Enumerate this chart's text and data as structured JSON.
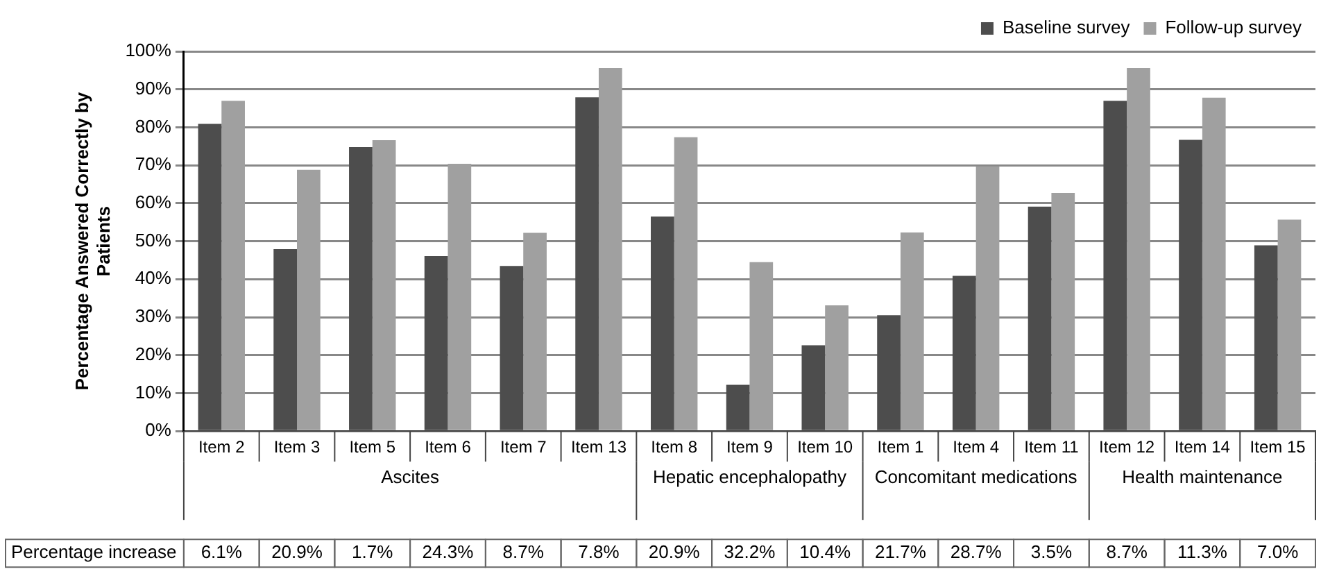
{
  "chart_data": {
    "type": "bar",
    "ylabel": "Percentage Answered Correctly by Patients",
    "categories": [
      "Item 2",
      "Item 3",
      "Item 5",
      "Item 6",
      "Item 7",
      "Item 13",
      "Item 8",
      "Item 9",
      "Item 10",
      "Item 1",
      "Item 4",
      "Item 11",
      "Item 12",
      "Item 14",
      "Item 15"
    ],
    "series": [
      {
        "name": "Baseline survey",
        "color": "#4d4d4d",
        "values": [
          80.9,
          47.9,
          74.8,
          46.1,
          43.5,
          87.9,
          56.5,
          12.2,
          22.6,
          30.5,
          40.9,
          59.1,
          87,
          76.7,
          48.9
        ]
      },
      {
        "name": "Follow-up survey",
        "color": "#a0a0a0",
        "values": [
          87,
          68.8,
          76.6,
          70.4,
          52.2,
          95.6,
          77.4,
          44.5,
          33.1,
          52.3,
          69.7,
          62.7,
          95.6,
          87.8,
          55.7
        ]
      }
    ],
    "ylim": [
      0,
      100
    ],
    "yticks": [
      {
        "value": 0,
        "label": "0%"
      },
      {
        "value": 10,
        "label": "10%"
      },
      {
        "value": 20,
        "label": "20%"
      },
      {
        "value": 30,
        "label": "30%"
      },
      {
        "value": 40,
        "label": "40%"
      },
      {
        "value": 50,
        "label": "50%"
      },
      {
        "value": 60,
        "label": "60%"
      },
      {
        "value": 70,
        "label": "70%"
      },
      {
        "value": 80,
        "label": "80%"
      },
      {
        "value": 90,
        "label": "90%"
      },
      {
        "value": 100,
        "label": "100%"
      }
    ],
    "grid": "y",
    "legend": "top right",
    "annotations": [
      "Ascites",
      "Hepatic encephalopathy",
      "Concomitant medications",
      "Health maintenance",
      "Percentage increase",
      "6.1%",
      "20.9%",
      "1.7%",
      "24.3%",
      "8.7%",
      "7.8%",
      "20.9%",
      "32.2%",
      "10.4%",
      "21.7%",
      "28.7%",
      "3.5%",
      "8.7%",
      "11.3%",
      "7.0%"
    ]
  }
}
